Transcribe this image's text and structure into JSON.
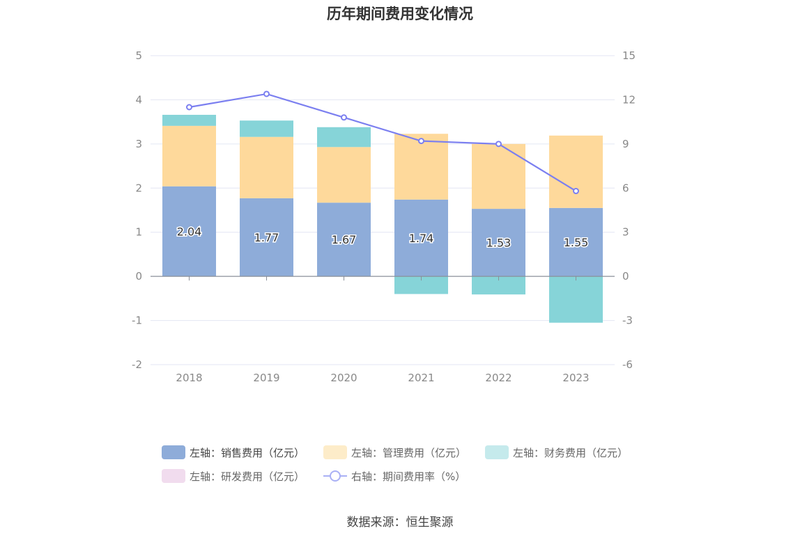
{
  "chart_data": {
    "type": "bar",
    "title": "历年期间费用变化情况",
    "categories": [
      "2018",
      "2019",
      "2020",
      "2021",
      "2022",
      "2023"
    ],
    "left_axis": {
      "min": -2,
      "max": 5,
      "ticks": [
        "-2",
        "-1",
        "0",
        "1",
        "2",
        "3",
        "4",
        "5"
      ]
    },
    "right_axis": {
      "min": -6,
      "max": 15,
      "ticks": [
        "-6",
        "-3",
        "0",
        "3",
        "6",
        "9",
        "12",
        "15"
      ]
    },
    "series": [
      {
        "name": "左轴：销售费用（亿元）",
        "type": "bar",
        "axis": "left",
        "color": "#8eacd9",
        "values": [
          2.04,
          1.77,
          1.67,
          1.74,
          1.53,
          1.55
        ],
        "labels": [
          "2.04",
          "1.77",
          "1.67",
          "1.74",
          "1.53",
          "1.55"
        ]
      },
      {
        "name": "左轴：管理费用（亿元）",
        "type": "bar",
        "axis": "left",
        "color": "#fed99b",
        "values": [
          1.37,
          1.39,
          1.26,
          1.49,
          1.47,
          1.64
        ]
      },
      {
        "name": "左轴：财务费用（亿元）",
        "type": "bar",
        "axis": "left",
        "color": "#86d4d8",
        "values": [
          0.25,
          0.37,
          0.45,
          -0.4,
          -0.41,
          -1.05
        ]
      },
      {
        "name": "左轴：研发费用（亿元）",
        "type": "bar",
        "axis": "left",
        "color": "#f1dcee",
        "values": [
          0,
          0,
          0,
          0,
          0,
          0
        ]
      },
      {
        "name": "右轴：期间费用率（%）",
        "type": "line",
        "axis": "right",
        "color": "#7b7ff0",
        "values": [
          11.5,
          12.4,
          10.8,
          9.2,
          9.0,
          5.8
        ]
      }
    ],
    "legend_position": "bottom",
    "grid": true
  },
  "source_text": "数据来源：恒生聚源"
}
